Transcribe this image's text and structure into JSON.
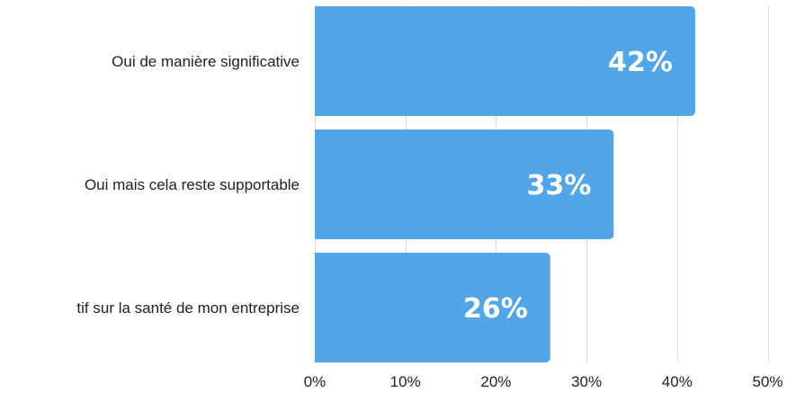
{
  "chart_data": {
    "type": "bar",
    "orientation": "horizontal",
    "title": "",
    "xlabel": "",
    "ylabel": "",
    "categories": [
      "Oui de manière significative",
      "Oui mais cela reste supportable",
      "tif sur la santé de mon entreprise"
    ],
    "values": [
      42,
      33,
      26
    ],
    "data_labels": [
      "42%",
      "33%",
      "26%"
    ],
    "xlim": [
      0,
      50
    ],
    "x_ticks": [
      0,
      10,
      20,
      30,
      40,
      50
    ],
    "x_tick_labels": [
      "0%",
      "10%",
      "20%",
      "30%",
      "40%",
      "50%"
    ],
    "grid": true,
    "bar_color": "#52a5e6"
  }
}
